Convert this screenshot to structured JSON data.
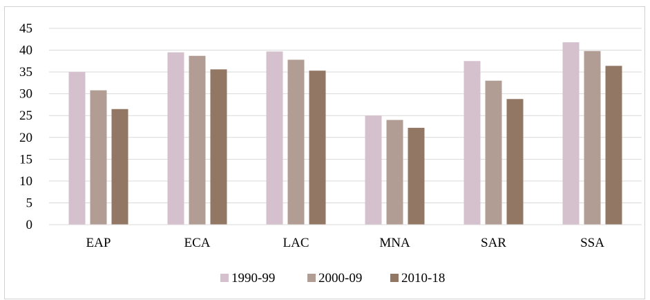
{
  "chart_data": {
    "type": "bar",
    "title": "",
    "xlabel": "",
    "ylabel": "",
    "ylim": [
      0,
      45
    ],
    "yticks": [
      0,
      5,
      10,
      15,
      20,
      25,
      30,
      35,
      40,
      45
    ],
    "grid": true,
    "legend_position": "bottom",
    "categories": [
      "EAP",
      "ECA",
      "LAC",
      "MNA",
      "SAR",
      "SSA"
    ],
    "series": [
      {
        "name": "1990-99",
        "color": "#d5c0cd",
        "values": [
          35.0,
          39.5,
          39.7,
          25.0,
          37.5,
          41.8
        ]
      },
      {
        "name": "2000-09",
        "color": "#b29d95",
        "values": [
          30.8,
          38.7,
          37.8,
          24.0,
          33.0,
          39.8
        ]
      },
      {
        "name": "2010-18",
        "color": "#937765",
        "values": [
          26.5,
          35.6,
          35.3,
          22.2,
          28.8,
          36.4
        ]
      }
    ]
  }
}
